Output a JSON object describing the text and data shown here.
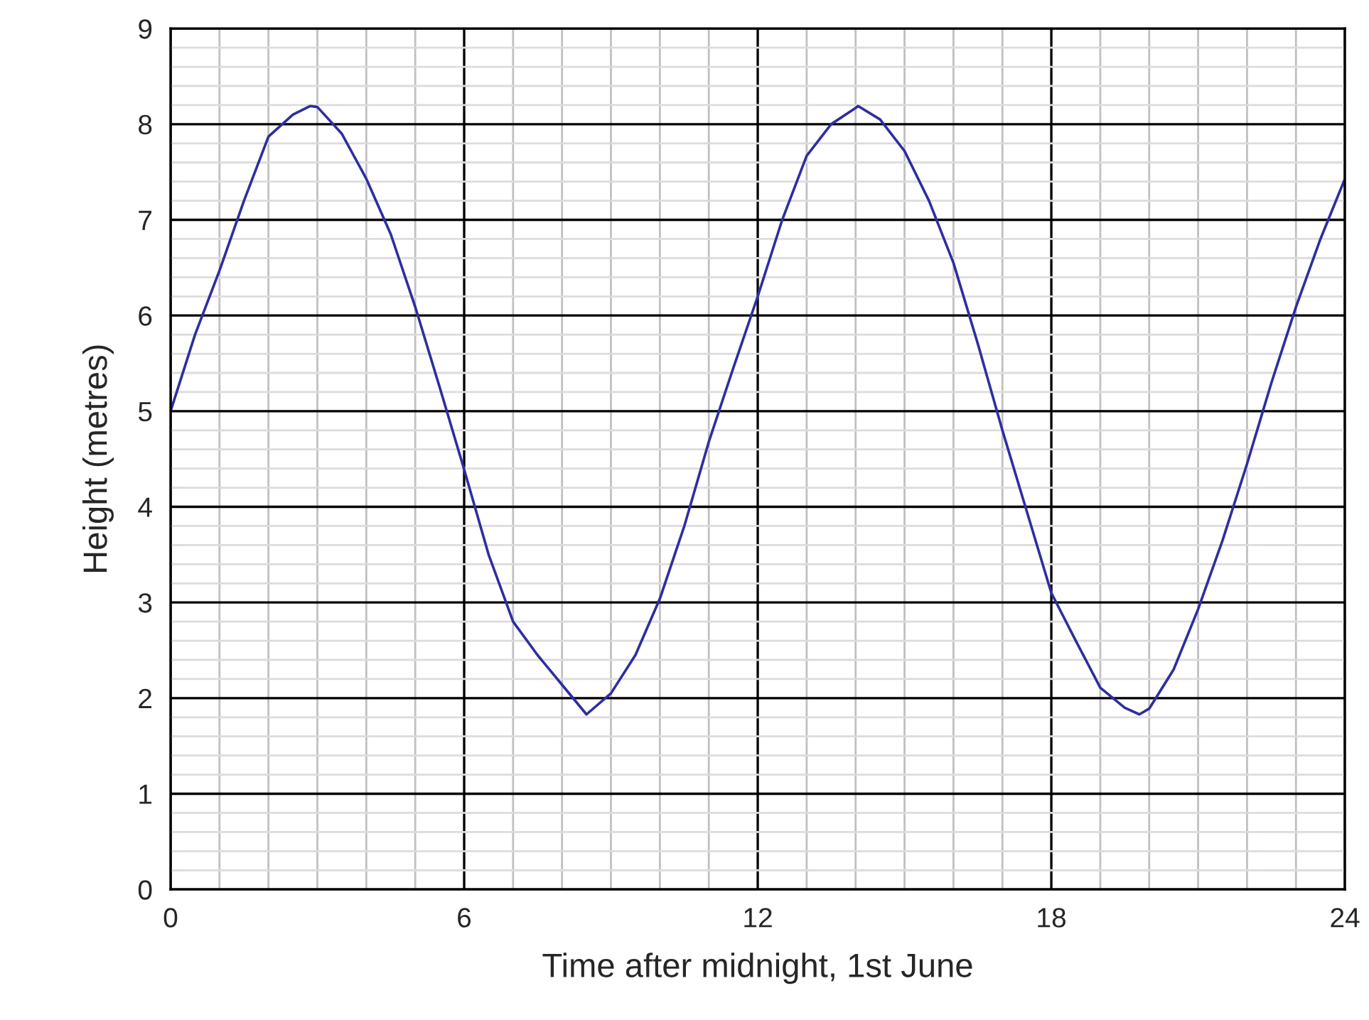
{
  "chart_data": {
    "type": "line",
    "xlabel": "Time after midnight, 1st June",
    "ylabel": "Height (metres)",
    "x": [
      0,
      0.5,
      1,
      1.5,
      2,
      2.5,
      2.85,
      3,
      3.5,
      4,
      4.5,
      5,
      5.5,
      6,
      6.5,
      7,
      7.5,
      8,
      8.5,
      9,
      9.5,
      10,
      10.5,
      11,
      11.5,
      12,
      12.5,
      13,
      13.5,
      14,
      14.05,
      14.5,
      15,
      15.5,
      16,
      16.5,
      17,
      17.5,
      18,
      18.5,
      19,
      19.5,
      19.8,
      20,
      20.5,
      21,
      21.5,
      22,
      22.5,
      23,
      23.5,
      24
    ],
    "series": [
      {
        "color": "#2e2ea0",
        "values": [
          5.0,
          5.8,
          6.47,
          7.2,
          7.87,
          8.1,
          8.19,
          8.18,
          7.9,
          7.43,
          6.85,
          6.09,
          5.25,
          4.39,
          3.5,
          2.8,
          2.45,
          2.14,
          1.83,
          2.05,
          2.45,
          3.04,
          3.8,
          4.68,
          5.45,
          6.2,
          7.0,
          7.67,
          8.0,
          8.17,
          8.19,
          8.05,
          7.72,
          7.2,
          6.55,
          5.7,
          4.8,
          3.95,
          3.1,
          2.6,
          2.11,
          1.9,
          1.83,
          1.89,
          2.3,
          2.93,
          3.65,
          4.45,
          5.3,
          6.09,
          6.8,
          7.43
        ]
      }
    ],
    "xlim": [
      0,
      24
    ],
    "xticks": [
      0,
      {
        "value": 1,
        "label": null
      },
      {
        "value": 2,
        "label": null
      },
      {
        "value": 3,
        "label": null
      },
      {
        "value": 4,
        "label": null
      },
      {
        "value": 5,
        "label": null
      },
      6,
      {
        "value": 7,
        "label": null
      },
      {
        "value": 8,
        "label": null
      },
      {
        "value": 9,
        "label": null
      },
      {
        "value": 10,
        "label": null
      },
      {
        "value": 11,
        "label": null
      },
      12,
      {
        "value": 13,
        "label": null
      },
      {
        "value": 14,
        "label": null
      },
      {
        "value": 15,
        "label": null
      },
      {
        "value": 16,
        "label": null
      },
      {
        "value": 17,
        "label": null
      },
      18,
      {
        "value": 19,
        "label": null
      },
      {
        "value": 20,
        "label": null
      },
      {
        "value": 21,
        "label": null
      },
      {
        "value": 22,
        "label": null
      },
      {
        "value": 23,
        "label": null
      },
      24
    ],
    "ylim": [
      0,
      9
    ],
    "yticks": [
      0,
      {
        "value": 0.2,
        "label": null
      },
      {
        "value": 0.4,
        "label": null
      },
      {
        "value": 0.6,
        "label": null
      },
      {
        "value": 0.8,
        "label": null
      },
      1,
      {
        "value": 1.2,
        "label": null
      },
      {
        "value": 1.4,
        "label": null
      },
      {
        "value": 1.6,
        "label": null
      },
      {
        "value": 1.8,
        "label": null
      },
      2,
      {
        "value": 2.2,
        "label": null
      },
      {
        "value": 2.4,
        "label": null
      },
      {
        "value": 2.6,
        "label": null
      },
      {
        "value": 2.8,
        "label": null
      },
      3,
      {
        "value": 3.2,
        "label": null
      },
      {
        "value": 3.4,
        "label": null
      },
      {
        "value": 3.6,
        "label": null
      },
      {
        "value": 3.8,
        "label": null
      },
      4,
      {
        "value": 4.2,
        "label": null
      },
      {
        "value": 4.4,
        "label": null
      },
      {
        "value": 4.6,
        "label": null
      },
      {
        "value": 4.8,
        "label": null
      },
      5,
      {
        "value": 5.2,
        "label": null
      },
      {
        "value": 5.4,
        "label": null
      },
      {
        "value": 5.6,
        "label": null
      },
      {
        "value": 5.8,
        "label": null
      },
      6,
      {
        "value": 6.2,
        "label": null
      },
      {
        "value": 6.4,
        "label": null
      },
      {
        "value": 6.6,
        "label": null
      },
      {
        "value": 6.8,
        "label": null
      },
      7,
      {
        "value": 7.2,
        "label": null
      },
      {
        "value": 7.4,
        "label": null
      },
      {
        "value": 7.6,
        "label": null
      },
      {
        "value": 7.8,
        "label": null
      },
      8,
      {
        "value": 8.2,
        "label": null
      },
      {
        "value": 8.4,
        "label": null
      },
      {
        "value": 8.6,
        "label": null
      },
      {
        "value": 8.8,
        "label": null
      },
      9
    ],
    "grid": true,
    "legend": false,
    "marker": "none",
    "line_style": "solid"
  }
}
